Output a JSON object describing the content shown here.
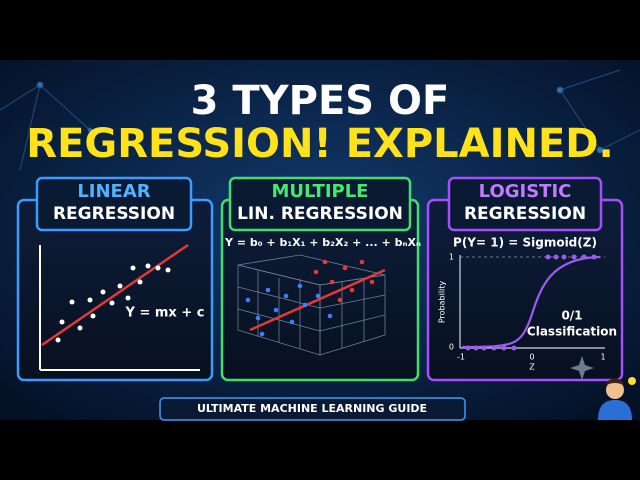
{
  "title": {
    "line1": "3 TYPES OF",
    "line2": "REGRESSION! EXPLAINED."
  },
  "panels": [
    {
      "heading": "LINEAR",
      "subheading": "REGRESSION",
      "equation": "Y = mx + c"
    },
    {
      "heading": "MULTIPLE",
      "subheading": "LIN. REGRESSION",
      "equation": "Y = b₀ + b₁X₁ + b₂X₂ + ... + bₙXₙ"
    },
    {
      "heading": "LOGISTIC",
      "subheading": "REGRESSION",
      "equation": "P(Y= 1) = Sigmoid(Z)",
      "y_label": "Probability",
      "x_label": "Z",
      "y_ticks": [
        1,
        0
      ],
      "x_ticks": [
        -1,
        0,
        1
      ],
      "annotation": [
        "0/1",
        "Classification"
      ]
    }
  ],
  "footer": "ULTIMATE MACHINE LEARNING GUIDE"
}
